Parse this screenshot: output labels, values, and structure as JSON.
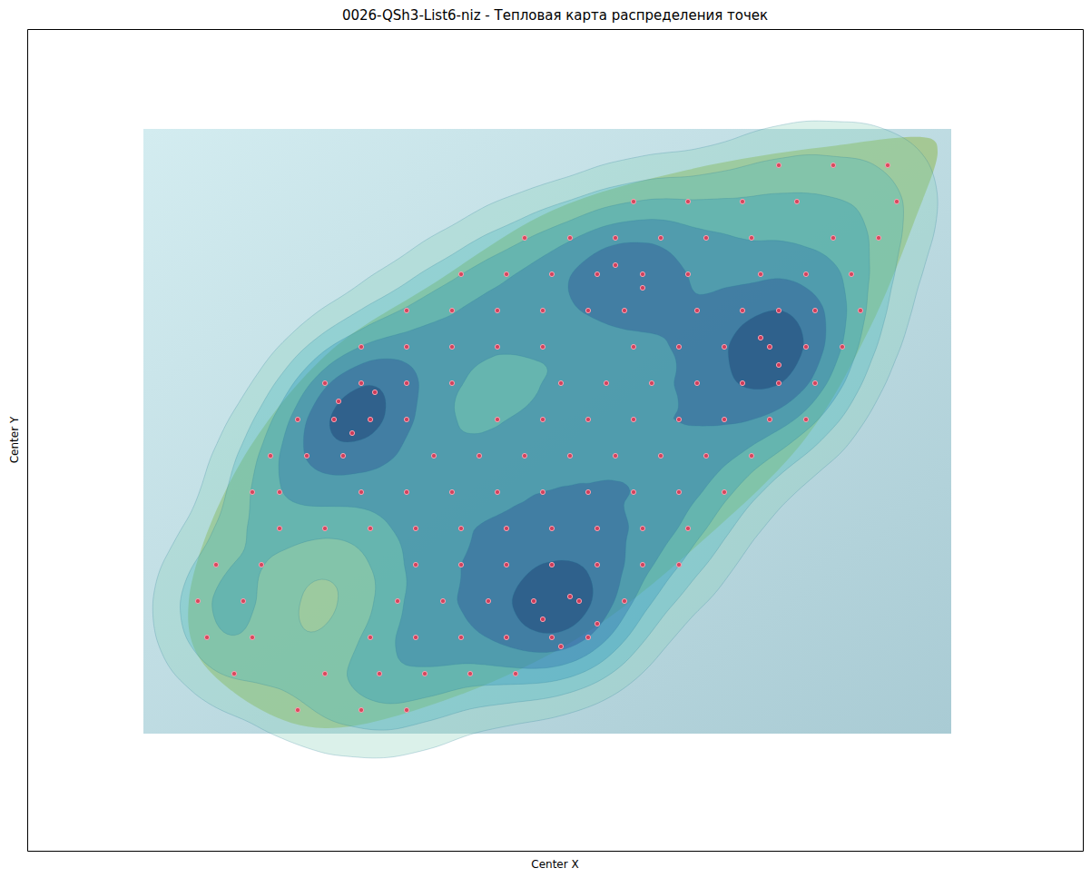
{
  "chart_data": {
    "type": "scatter",
    "title": "0026-QSh3-List6-niz - Тепловая карта распределения точек",
    "x_label": "Center X",
    "y_label": "Center Y",
    "color": "#e8344f",
    "tick_labels": false,
    "xlim": [
      -128,
      1035
    ],
    "ylim": [
      -129,
      776
    ],
    "x": [
      700,
      760,
      820,
      540,
      600,
      660,
      720,
      830,
      420,
      470,
      520,
      570,
      620,
      670,
      760,
      810,
      350,
      400,
      450,
      500,
      550,
      600,
      680,
      730,
      780,
      290,
      340,
      390,
      440,
      490,
      530,
      610,
      660,
      700,
      740,
      790,
      240,
      290,
      340,
      390,
      440,
      540,
      590,
      640,
      690,
      730,
      770,
      200,
      240,
      290,
      340,
      460,
      510,
      560,
      610,
      660,
      700,
      740,
      170,
      210,
      250,
      290,
      390,
      440,
      490,
      540,
      590,
      640,
      690,
      730,
      140,
      180,
      220,
      320,
      370,
      420,
      470,
      520,
      570,
      620,
      670,
      120,
      150,
      240,
      290,
      340,
      390,
      440,
      490,
      540,
      590,
      640,
      150,
      200,
      250,
      300,
      350,
      400,
      450,
      500,
      550,
      600,
      80,
      130,
      300,
      350,
      400,
      450,
      500,
      550,
      590,
      60,
      110,
      280,
      330,
      380,
      430,
      480,
      530,
      70,
      120,
      250,
      300,
      350,
      400,
      450,
      490,
      100,
      200,
      260,
      310,
      360,
      410,
      170,
      240,
      290,
      215,
      255,
      230,
      440,
      470,
      500,
      460,
      520,
      550,
      680,
      700
    ],
    "values": [
      626,
      626,
      626,
      586,
      586,
      586,
      586,
      586,
      546,
      546,
      546,
      546,
      546,
      546,
      546,
      546,
      506,
      506,
      506,
      506,
      506,
      506,
      506,
      506,
      506,
      466,
      466,
      466,
      466,
      466,
      466,
      466,
      466,
      466,
      466,
      466,
      426,
      426,
      426,
      426,
      426,
      426,
      426,
      426,
      426,
      426,
      426,
      386,
      386,
      386,
      386,
      386,
      386,
      386,
      386,
      386,
      386,
      386,
      346,
      346,
      346,
      346,
      346,
      346,
      346,
      346,
      346,
      346,
      346,
      346,
      306,
      306,
      306,
      306,
      306,
      306,
      306,
      306,
      306,
      306,
      306,
      266,
      266,
      266,
      266,
      266,
      266,
      266,
      266,
      266,
      266,
      266,
      226,
      226,
      226,
      226,
      226,
      226,
      226,
      226,
      226,
      226,
      186,
      186,
      186,
      186,
      186,
      186,
      186,
      186,
      186,
      146,
      146,
      146,
      146,
      146,
      146,
      146,
      146,
      106,
      106,
      106,
      106,
      106,
      106,
      106,
      106,
      66,
      66,
      66,
      66,
      66,
      66,
      26,
      26,
      26,
      366,
      376,
      331,
      126,
      151,
      121,
      96,
      516,
      491,
      436,
      406
    ]
  }
}
